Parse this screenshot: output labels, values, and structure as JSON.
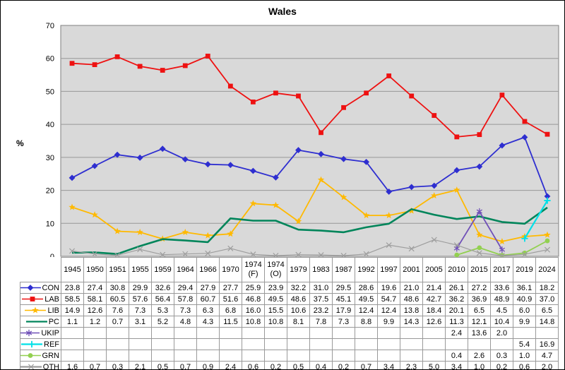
{
  "chart_data": {
    "type": "line",
    "title": "Wales",
    "xlabel": "",
    "ylabel": "%",
    "ylim": [
      0,
      70
    ],
    "yticks": [
      0,
      10,
      20,
      30,
      40,
      50,
      60,
      70
    ],
    "grid": true,
    "legend_position": "data-table-left",
    "plot_bg": "#D9D9D9",
    "grid_color": "#989898",
    "plot_border": "#808080",
    "categories": [
      "1945",
      "1950",
      "1951",
      "1955",
      "1959",
      "1964",
      "1966",
      "1970",
      "1974 (F)",
      "1974 (O)",
      "1979",
      "1983",
      "1987",
      "1992",
      "1997",
      "2001",
      "2005",
      "2010",
      "2015",
      "2017",
      "2019",
      "2024"
    ],
    "series": [
      {
        "name": "CON",
        "color": "#2E2ED0",
        "marker": "diamond",
        "values": [
          23.8,
          27.4,
          30.8,
          29.9,
          32.6,
          29.4,
          27.9,
          27.7,
          25.9,
          23.9,
          32.2,
          31.0,
          29.5,
          28.6,
          19.6,
          21.0,
          21.4,
          26.1,
          27.2,
          33.6,
          36.1,
          18.2
        ]
      },
      {
        "name": "LAB",
        "color": "#EE1111",
        "marker": "square",
        "values": [
          58.5,
          58.1,
          60.5,
          57.6,
          56.4,
          57.8,
          60.7,
          51.6,
          46.8,
          49.5,
          48.6,
          37.5,
          45.1,
          49.5,
          54.7,
          48.6,
          42.7,
          36.2,
          36.9,
          48.9,
          40.9,
          37.0
        ]
      },
      {
        "name": "LIB",
        "color": "#FFB900",
        "marker": "star",
        "values": [
          14.9,
          12.6,
          7.6,
          7.3,
          5.3,
          7.3,
          6.3,
          6.8,
          16.0,
          15.5,
          10.6,
          23.2,
          17.9,
          12.4,
          12.4,
          13.8,
          18.4,
          20.1,
          6.5,
          4.5,
          6.0,
          6.5
        ]
      },
      {
        "name": "PC",
        "color": "#00855A",
        "marker": "none",
        "values": [
          1.1,
          1.2,
          0.7,
          3.1,
          5.2,
          4.8,
          4.3,
          11.5,
          10.8,
          10.8,
          8.1,
          7.8,
          7.3,
          8.8,
          9.9,
          14.3,
          12.6,
          11.3,
          12.1,
          10.4,
          9.9,
          14.8
        ]
      },
      {
        "name": "UKIP",
        "color": "#7050B8",
        "marker": "asterisk",
        "values": [
          null,
          null,
          null,
          null,
          null,
          null,
          null,
          null,
          null,
          null,
          null,
          null,
          null,
          null,
          null,
          null,
          null,
          2.4,
          13.6,
          2.0,
          null,
          null
        ]
      },
      {
        "name": "REF",
        "color": "#00E0E8",
        "marker": "plus",
        "values": [
          null,
          null,
          null,
          null,
          null,
          null,
          null,
          null,
          null,
          null,
          null,
          null,
          null,
          null,
          null,
          null,
          null,
          null,
          null,
          null,
          5.4,
          16.9
        ]
      },
      {
        "name": "GRN",
        "color": "#92D050",
        "marker": "circle",
        "values": [
          null,
          null,
          null,
          null,
          null,
          null,
          null,
          null,
          null,
          null,
          null,
          null,
          null,
          null,
          null,
          null,
          null,
          0.4,
          2.6,
          0.3,
          1.0,
          4.7
        ]
      },
      {
        "name": "OTH",
        "color": "#9E9E9E",
        "marker": "x",
        "values": [
          1.6,
          0.7,
          0.3,
          2.1,
          0.5,
          0.7,
          0.9,
          2.4,
          0.6,
          0.2,
          0.5,
          0.4,
          0.2,
          0.7,
          3.4,
          2.3,
          5.0,
          3.4,
          1.0,
          0.2,
          0.6,
          2.0
        ]
      }
    ]
  }
}
